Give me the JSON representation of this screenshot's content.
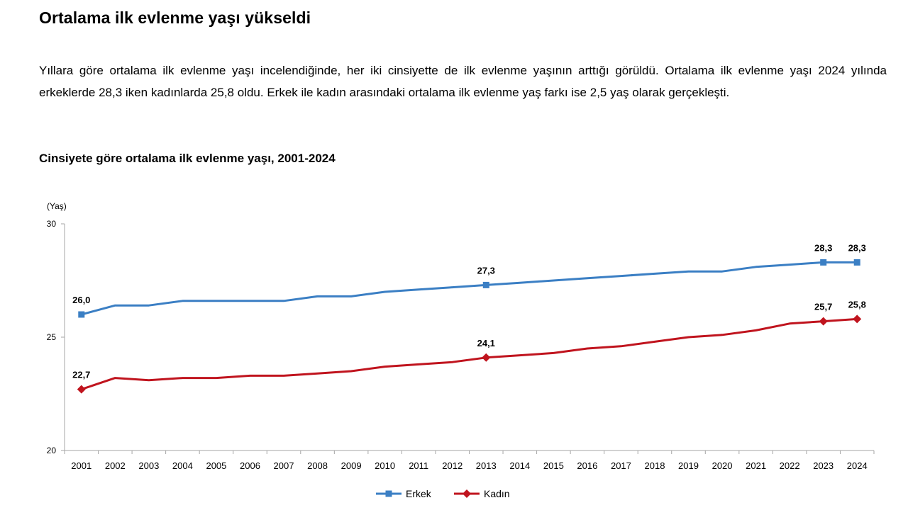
{
  "header": {
    "title": "Ortalama ilk evlenme yaşı yükseldi",
    "paragraph": "Yıllara göre ortalama ilk evlenme yaşı incelendiğinde, her iki cinsiyette de ilk evlenme yaşının arttığı görüldü. Ortalama ilk evlenme yaşı 2024 yılında erkeklerde 28,3 iken kadınlarda 25,8 oldu. Erkek ile kadın arasındaki ortalama ilk evlenme yaş farkı ise 2,5 yaş olarak gerçekleşti."
  },
  "chart_data": {
    "type": "line",
    "title": "Cinsiyete göre ortalama ilk evlenme yaşı, 2001-2024",
    "ylabel": "(Yaş)",
    "xlabel": "",
    "ylim": [
      20,
      30
    ],
    "yticks": [
      "20",
      "25",
      "30"
    ],
    "grid": false,
    "legend": "bottom-center",
    "categories": [
      "2001",
      "2002",
      "2003",
      "2004",
      "2005",
      "2006",
      "2007",
      "2008",
      "2009",
      "2010",
      "2011",
      "2012",
      "2013",
      "2014",
      "2015",
      "2016",
      "2017",
      "2018",
      "2019",
      "2020",
      "2021",
      "2022",
      "2023",
      "2024"
    ],
    "series": [
      {
        "name": "Erkek",
        "color": "#3b7fc4",
        "marker": "square",
        "values": [
          26.0,
          26.4,
          26.4,
          26.6,
          26.6,
          26.6,
          26.6,
          26.8,
          26.8,
          27.0,
          27.1,
          27.2,
          27.3,
          27.4,
          27.5,
          27.6,
          27.7,
          27.8,
          27.9,
          27.9,
          28.1,
          28.2,
          28.3,
          28.3
        ],
        "labeled": [
          {
            "index": 0,
            "text": "26,0"
          },
          {
            "index": 12,
            "text": "27,3"
          },
          {
            "index": 22,
            "text": "28,3"
          },
          {
            "index": 23,
            "text": "28,3"
          }
        ]
      },
      {
        "name": "Kadın",
        "color": "#c0141e",
        "marker": "diamond",
        "values": [
          22.7,
          23.2,
          23.1,
          23.2,
          23.2,
          23.3,
          23.3,
          23.4,
          23.5,
          23.7,
          23.8,
          23.9,
          24.1,
          24.2,
          24.3,
          24.5,
          24.6,
          24.8,
          25.0,
          25.1,
          25.3,
          25.6,
          25.7,
          25.8
        ],
        "labeled": [
          {
            "index": 0,
            "text": "22,7"
          },
          {
            "index": 12,
            "text": "24,1"
          },
          {
            "index": 22,
            "text": "25,7"
          },
          {
            "index": 23,
            "text": "25,8"
          }
        ]
      }
    ]
  }
}
